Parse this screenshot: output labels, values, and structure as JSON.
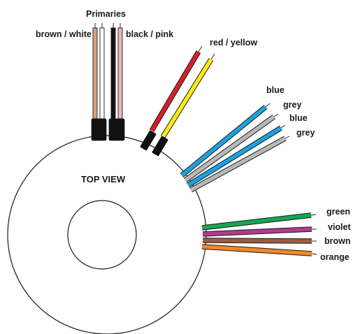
{
  "diagram": {
    "view_label": "TOP VIEW",
    "group_label": "Primaries",
    "labels": {
      "brown_white": "brown / white",
      "black_pink": "black / pink",
      "red_yellow": "red / yellow",
      "blue_1": "blue",
      "grey_1": "grey",
      "blue_2": "blue",
      "grey_2": "grey",
      "green": "green",
      "violet": "violet",
      "brown": "brown",
      "orange": "orange"
    }
  },
  "colors": {
    "brown_white_a": "#d9a27a",
    "brown_white_b": "#ffffff",
    "black_pink_a": "#111111",
    "black_pink_b": "#f2b3bd",
    "red": "#d51f26",
    "yellow": "#ffeb14",
    "blue": "#1aa3e0",
    "grey": "#b8b8b8",
    "green": "#16a556",
    "violet": "#b03c8c",
    "brown": "#9c5b3f",
    "orange": "#f3872a",
    "sleeve": "#111111",
    "outline": "#1a1a1a"
  }
}
